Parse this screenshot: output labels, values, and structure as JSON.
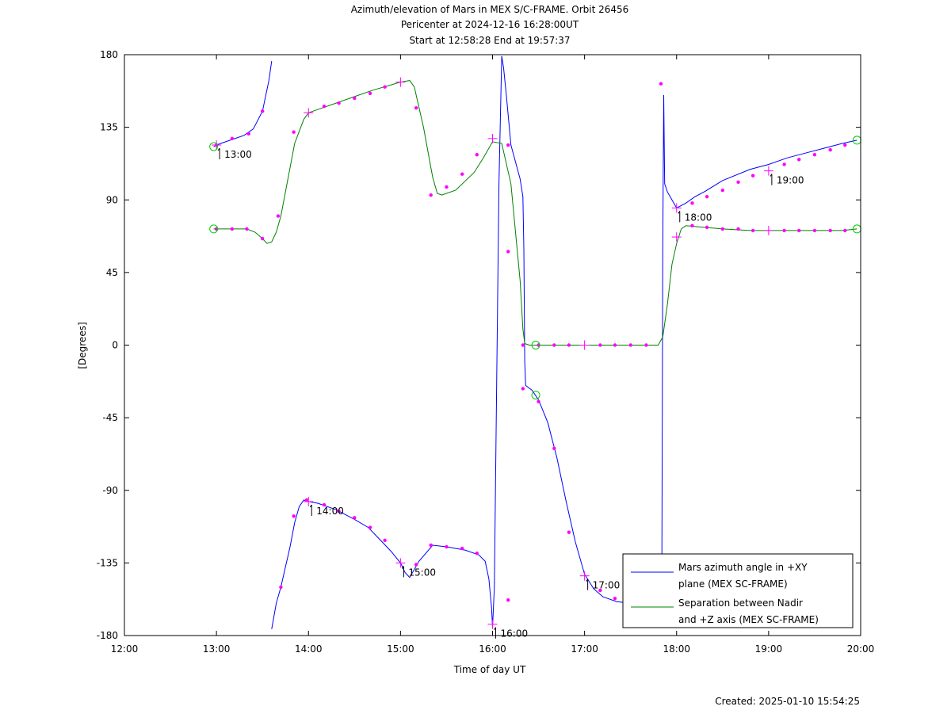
{
  "chart_data": {
    "type": "line",
    "title_lines": [
      "Azimuth/elevation of Mars in MEX S/C-FRAME.  Orbit 26456",
      "Pericenter at 2024-12-16 16:28:00UT",
      "Start at 12:58:28 End at 19:57:37"
    ],
    "xlabel": "Time of day UT",
    "ylabel": "[Degrees]",
    "xlim": [
      12.0,
      20.0
    ],
    "ylim": [
      -180,
      180
    ],
    "x_ticks": [
      12,
      13,
      14,
      15,
      16,
      17,
      18,
      19,
      20
    ],
    "x_tick_labels": [
      "12:00",
      "13:00",
      "14:00",
      "15:00",
      "16:00",
      "17:00",
      "18:00",
      "19:00",
      "20:00"
    ],
    "y_ticks": [
      180,
      135,
      90,
      45,
      0,
      -45,
      -90,
      -135,
      -180
    ],
    "y_tick_labels": [
      "180",
      "135",
      "90",
      "45",
      "0",
      "-45",
      "-90",
      "-135",
      "-180"
    ],
    "grid": false,
    "legend_position": "bottom-right",
    "colors": {
      "azimuth": "#0000ff",
      "separation": "#008000",
      "marker": "#ff00ff",
      "circle": "#00cc00"
    },
    "series": [
      {
        "name": "Mars azimuth angle in +XY plane (MEX SC-FRAME)",
        "legend_lines": [
          "Mars azimuth angle in +XY",
          "plane (MEX SC-FRAME)"
        ],
        "color": "#0000ff",
        "segments": [
          [
            [
              12.97,
              123
            ],
            [
              13.0,
              124
            ],
            [
              13.1,
              126
            ],
            [
              13.2,
              128
            ],
            [
              13.3,
              130
            ],
            [
              13.4,
              134
            ],
            [
              13.5,
              145
            ],
            [
              13.57,
              164
            ],
            [
              13.6,
              176
            ]
          ],
          [
            [
              13.6,
              -176
            ],
            [
              13.65,
              -160
            ],
            [
              13.7,
              -150
            ],
            [
              13.8,
              -125
            ],
            [
              13.85,
              -110
            ],
            [
              13.9,
              -100
            ],
            [
              13.95,
              -96
            ],
            [
              14.0,
              -97
            ],
            [
              14.1,
              -98
            ],
            [
              14.3,
              -102
            ],
            [
              14.5,
              -108
            ],
            [
              14.65,
              -113
            ],
            [
              14.8,
              -122
            ],
            [
              14.9,
              -128
            ],
            [
              15.0,
              -135
            ],
            [
              15.05,
              -141
            ],
            [
              15.1,
              -144
            ],
            [
              15.2,
              -134
            ],
            [
              15.35,
              -124
            ],
            [
              15.5,
              -125
            ],
            [
              15.7,
              -127
            ],
            [
              15.85,
              -130
            ],
            [
              15.92,
              -134
            ],
            [
              15.96,
              -145
            ],
            [
              15.99,
              -163
            ],
            [
              16.0,
              -175
            ],
            [
              16.02,
              -150
            ],
            [
              16.04,
              -50
            ],
            [
              16.07,
              100
            ],
            [
              16.1,
              179
            ]
          ],
          [
            [
              16.1,
              179
            ],
            [
              16.12,
              172
            ],
            [
              16.15,
              155
            ],
            [
              16.2,
              124
            ],
            [
              16.3,
              103
            ],
            [
              16.33,
              92
            ],
            [
              16.34,
              60
            ],
            [
              16.35,
              -10
            ],
            [
              16.36,
              -25
            ],
            [
              16.43,
              -28
            ],
            [
              16.5,
              -34
            ],
            [
              16.6,
              -48
            ],
            [
              16.7,
              -70
            ],
            [
              16.8,
              -97
            ],
            [
              16.9,
              -122
            ],
            [
              17.0,
              -142
            ],
            [
              17.1,
              -151
            ],
            [
              17.2,
              -156
            ],
            [
              17.35,
              -159
            ],
            [
              17.5,
              -160
            ],
            [
              17.6,
              -161
            ],
            [
              17.8,
              -159
            ],
            [
              17.84,
              -130
            ],
            [
              17.85,
              60
            ],
            [
              17.86,
              155
            ],
            [
              17.87,
              100
            ],
            [
              17.9,
              95
            ],
            [
              17.95,
              90
            ],
            [
              18.0,
              85
            ],
            [
              18.1,
              88
            ],
            [
              18.2,
              92
            ],
            [
              18.3,
              95
            ],
            [
              18.5,
              102
            ],
            [
              18.8,
              109
            ],
            [
              19.0,
              112
            ],
            [
              19.2,
              116
            ],
            [
              19.4,
              119
            ],
            [
              19.6,
              122
            ],
            [
              19.8,
              125
            ],
            [
              19.96,
              127
            ]
          ]
        ]
      },
      {
        "name": "Separation between Nadir and +Z axis (MEX SC-FRAME)",
        "legend_lines": [
          "Separation between Nadir",
          "and +Z axis (MEX SC-FRAME)"
        ],
        "color": "#008000",
        "segments": [
          [
            [
              12.97,
              72
            ],
            [
              13.0,
              72
            ],
            [
              13.1,
              72
            ],
            [
              13.2,
              72
            ],
            [
              13.33,
              72
            ],
            [
              13.42,
              70
            ],
            [
              13.5,
              66
            ],
            [
              13.55,
              63
            ],
            [
              13.6,
              64
            ],
            [
              13.65,
              70
            ],
            [
              13.7,
              80
            ],
            [
              13.75,
              95
            ],
            [
              13.85,
              125
            ],
            [
              13.95,
              140
            ],
            [
              14.0,
              144
            ],
            [
              14.1,
              146
            ],
            [
              14.3,
              150
            ],
            [
              14.5,
              154
            ],
            [
              14.7,
              158
            ],
            [
              15.0,
              163
            ],
            [
              15.1,
              164
            ],
            [
              15.15,
              160
            ],
            [
              15.25,
              135
            ],
            [
              15.33,
              110
            ],
            [
              15.35,
              104
            ],
            [
              15.4,
              94
            ],
            [
              15.45,
              93
            ],
            [
              15.6,
              96
            ],
            [
              15.8,
              107
            ],
            [
              15.9,
              116
            ],
            [
              16.0,
              126
            ],
            [
              16.1,
              125
            ],
            [
              16.2,
              100
            ],
            [
              16.25,
              70
            ],
            [
              16.3,
              40
            ],
            [
              16.33,
              10
            ],
            [
              16.35,
              1
            ],
            [
              16.4,
              0
            ],
            [
              16.6,
              0
            ],
            [
              17.0,
              0
            ],
            [
              17.3,
              0
            ],
            [
              17.5,
              0
            ],
            [
              17.7,
              0
            ],
            [
              17.8,
              0
            ],
            [
              17.85,
              5
            ],
            [
              17.9,
              25
            ],
            [
              17.95,
              50
            ],
            [
              18.0,
              63
            ],
            [
              18.05,
              72
            ],
            [
              18.1,
              74
            ],
            [
              18.3,
              73
            ],
            [
              18.5,
              72
            ],
            [
              18.8,
              71
            ],
            [
              19.0,
              71
            ],
            [
              19.3,
              71
            ],
            [
              19.6,
              71
            ],
            [
              19.8,
              71
            ],
            [
              19.96,
              72
            ]
          ]
        ]
      }
    ],
    "dot_markers": [
      [
        13.0,
        124
      ],
      [
        13.17,
        128
      ],
      [
        13.35,
        131
      ],
      [
        13.5,
        145
      ],
      [
        13.7,
        -150
      ],
      [
        13.84,
        -106
      ],
      [
        13.98,
        -96
      ],
      [
        14.17,
        -99
      ],
      [
        14.33,
        -103
      ],
      [
        14.5,
        -107
      ],
      [
        14.67,
        -113
      ],
      [
        14.83,
        -121
      ],
      [
        15.17,
        -136
      ],
      [
        15.33,
        -124
      ],
      [
        15.5,
        -125
      ],
      [
        15.67,
        -126
      ],
      [
        15.83,
        -129
      ],
      [
        16.17,
        -158
      ],
      [
        16.33,
        -27
      ],
      [
        16.5,
        -35
      ],
      [
        16.67,
        -64
      ],
      [
        16.83,
        -116
      ],
      [
        17.17,
        -152
      ],
      [
        17.33,
        -157
      ],
      [
        17.83,
        162
      ],
      [
        18.17,
        88
      ],
      [
        18.33,
        92
      ],
      [
        18.5,
        96
      ],
      [
        18.67,
        101
      ],
      [
        18.83,
        105
      ],
      [
        19.17,
        112
      ],
      [
        19.33,
        115
      ],
      [
        19.5,
        118
      ],
      [
        19.67,
        121
      ],
      [
        19.83,
        124
      ],
      [
        13.0,
        72
      ],
      [
        13.17,
        72
      ],
      [
        13.33,
        72
      ],
      [
        13.5,
        66
      ],
      [
        13.67,
        80
      ],
      [
        13.84,
        132
      ],
      [
        14.17,
        148
      ],
      [
        14.33,
        150
      ],
      [
        14.5,
        153
      ],
      [
        14.67,
        156
      ],
      [
        14.83,
        160
      ],
      [
        15.17,
        147
      ],
      [
        15.33,
        93
      ],
      [
        15.5,
        98
      ],
      [
        15.67,
        106
      ],
      [
        15.83,
        118
      ],
      [
        16.17,
        124
      ],
      [
        16.17,
        58
      ],
      [
        16.33,
        0
      ],
      [
        16.5,
        0
      ],
      [
        16.67,
        0
      ],
      [
        16.83,
        0
      ],
      [
        17.17,
        0
      ],
      [
        17.33,
        0
      ],
      [
        17.5,
        0
      ],
      [
        17.67,
        0
      ],
      [
        18.17,
        74
      ],
      [
        18.33,
        73
      ],
      [
        18.5,
        72
      ],
      [
        18.67,
        72
      ],
      [
        18.83,
        71
      ],
      [
        19.17,
        71
      ],
      [
        19.33,
        71
      ],
      [
        19.5,
        71
      ],
      [
        19.67,
        71
      ],
      [
        19.83,
        71
      ]
    ],
    "hour_markers": [
      [
        13.0,
        124
      ],
      [
        14.0,
        144
      ],
      [
        15.0,
        163
      ],
      [
        16.0,
        128
      ],
      [
        17.0,
        0
      ],
      [
        18.0,
        67
      ],
      [
        19.0,
        71
      ],
      [
        14.0,
        -97
      ],
      [
        15.0,
        -135
      ],
      [
        16.0,
        -173
      ],
      [
        17.0,
        -143
      ],
      [
        18.0,
        85
      ],
      [
        19.0,
        108
      ]
    ],
    "circle_markers": [
      [
        12.97,
        123
      ],
      [
        12.97,
        72
      ],
      [
        16.47,
        -31
      ],
      [
        16.47,
        0
      ],
      [
        19.96,
        127
      ],
      [
        19.96,
        72
      ]
    ],
    "annotations": [
      {
        "label": "13:00",
        "x": 13.0,
        "y": 124
      },
      {
        "label": "14:00",
        "x": 14.0,
        "y": -97
      },
      {
        "label": "15:00",
        "x": 15.0,
        "y": -135
      },
      {
        "label": "16:00",
        "x": 16.0,
        "y": -173
      },
      {
        "label": "17:00",
        "x": 17.0,
        "y": -143
      },
      {
        "label": "18:00",
        "x": 18.0,
        "y": 85
      },
      {
        "label": "19:00",
        "x": 19.0,
        "y": 108
      }
    ]
  },
  "footer": {
    "created": "Created: 2025-01-10 15:54:25"
  }
}
